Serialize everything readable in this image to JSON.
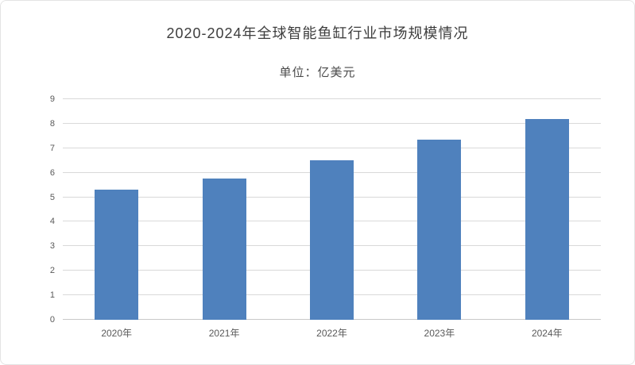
{
  "chart": {
    "title": "2020-2024年全球智能鱼缸行业市场规模情况",
    "unit_label": "单位：亿美元"
  },
  "chart_data": {
    "type": "bar",
    "title": "2020-2024年全球智能鱼缸行业市场规模情况",
    "subtitle": "单位：亿美元",
    "categories": [
      "2020年",
      "2021年",
      "2022年",
      "2023年",
      "2024年"
    ],
    "values": [
      5.3,
      5.75,
      6.5,
      7.35,
      8.2
    ],
    "xlabel": "",
    "ylabel": "",
    "ylim": [
      0,
      9
    ],
    "ytick_step": 1,
    "yticks": [
      0,
      1,
      2,
      3,
      4,
      5,
      6,
      7,
      8,
      9
    ],
    "grid": true,
    "legend": false,
    "bar_color": "#4f81bd",
    "gridline_color": "#d9d9d9",
    "axis_label_color": "#595959",
    "title_color": "#3d3d3d"
  }
}
